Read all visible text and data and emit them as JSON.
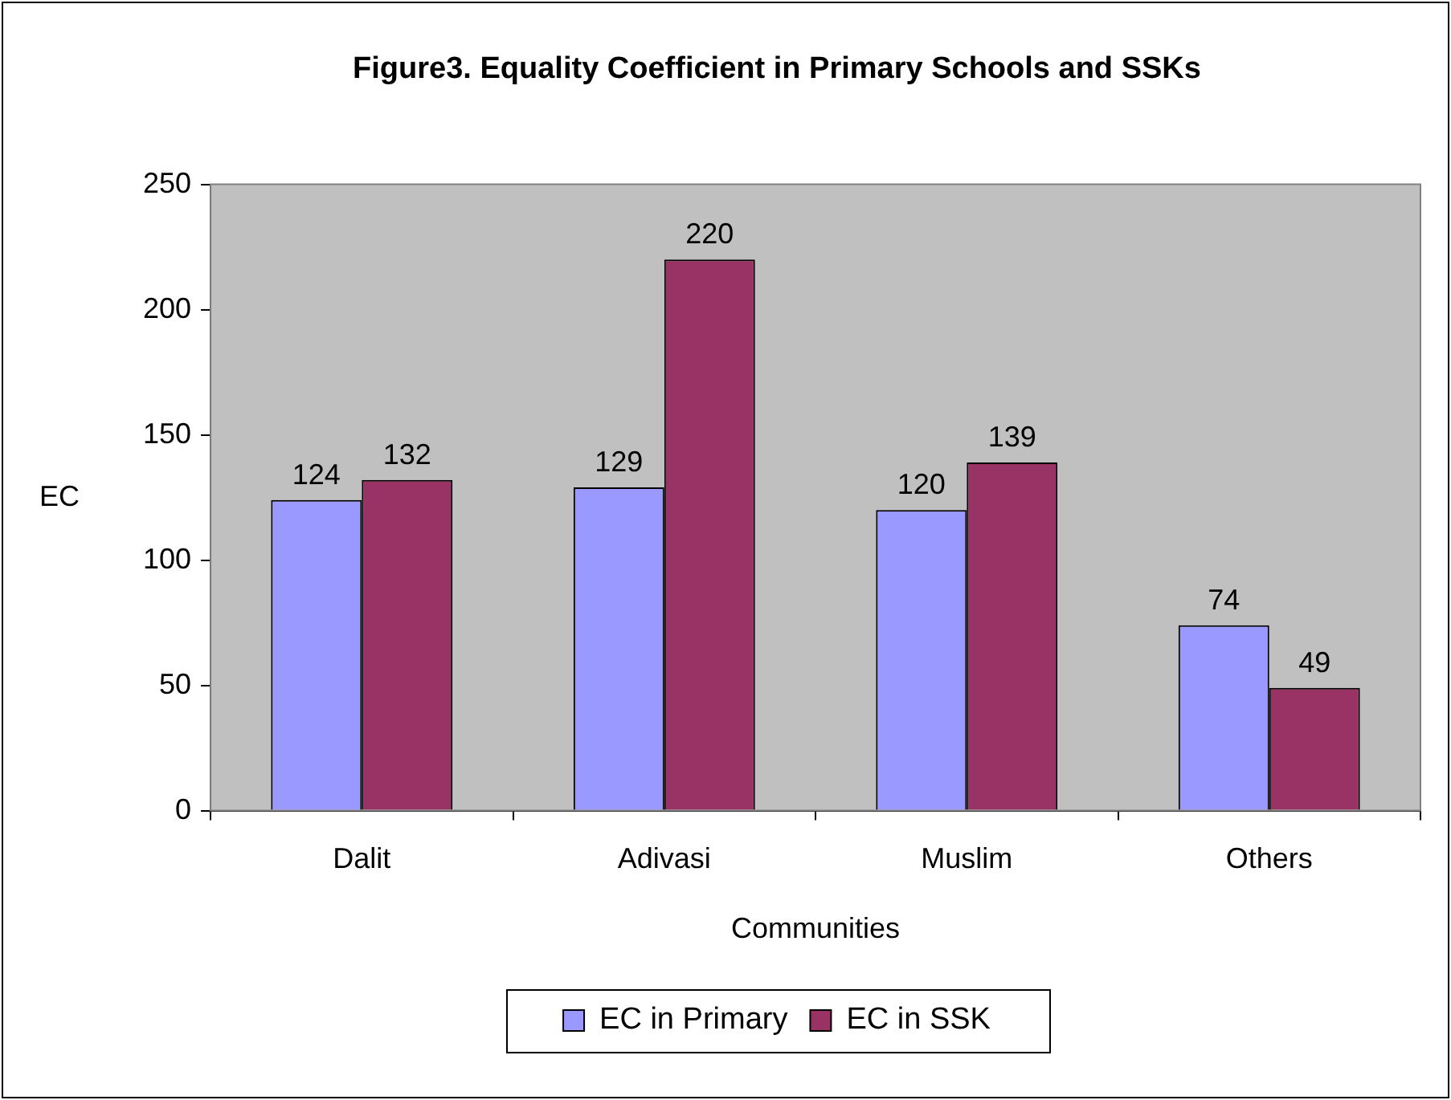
{
  "chart_data": {
    "type": "bar",
    "title": "Figure3. Equality Coefficient in Primary Schools and SSKs",
    "xlabel": "Communities",
    "ylabel": "EC",
    "categories": [
      "Dalit",
      "Adivasi",
      "Muslim",
      "Others"
    ],
    "series": [
      {
        "name": "EC in Primary",
        "color": "#9999ff",
        "values": [
          124,
          129,
          120,
          74
        ]
      },
      {
        "name": "EC in SSK",
        "color": "#993366",
        "values": [
          132,
          220,
          139,
          49
        ]
      }
    ],
    "ylim": [
      0,
      250
    ],
    "yticks": [
      0,
      50,
      100,
      150,
      200,
      250
    ],
    "legend": "bottom",
    "data_labels": true
  }
}
